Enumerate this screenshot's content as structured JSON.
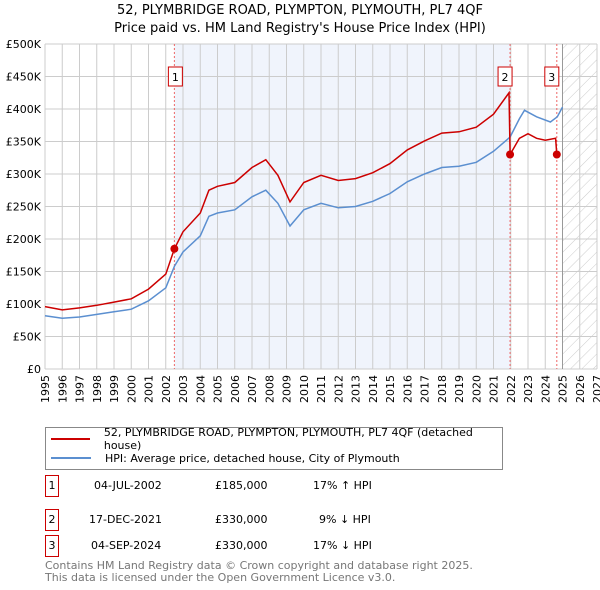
{
  "title": "52, PLYMBRIDGE ROAD, PLYMPTON, PLYMOUTH, PL7 4QF",
  "subtitle": "Price paid vs. HM Land Registry's House Price Index (HPI)",
  "chart_data": {
    "type": "line",
    "xlim": [
      1995,
      2027
    ],
    "ylim": [
      0,
      500000
    ],
    "x_ticks": [
      "1995",
      "1996",
      "1997",
      "1998",
      "1999",
      "2000",
      "2001",
      "2002",
      "2003",
      "2004",
      "2005",
      "2006",
      "2007",
      "2008",
      "2009",
      "2010",
      "2011",
      "2012",
      "2013",
      "2014",
      "2015",
      "2016",
      "2017",
      "2018",
      "2019",
      "2020",
      "2021",
      "2022",
      "2023",
      "2024",
      "2025",
      "2026",
      "2027"
    ],
    "y_ticks": [
      "£0",
      "£50K",
      "£100K",
      "£150K",
      "£200K",
      "£250K",
      "£300K",
      "£350K",
      "£400K",
      "£450K",
      "£500K"
    ],
    "grid": true,
    "shaded_period": [
      2002.5,
      2021.96
    ],
    "forecast_hatch_from": 2025,
    "series": [
      {
        "name": "52, PLYMBRIDGE ROAD, PLYMPTON, PLYMOUTH, PL7 4QF (detached house)",
        "color": "#cc0000",
        "x": [
          1995,
          1996,
          1997,
          1998,
          1999,
          2000,
          2001,
          2002,
          2002.5,
          2003,
          2004,
          2004.5,
          2005,
          2006,
          2007,
          2007.8,
          2008.5,
          2009.2,
          2010,
          2011,
          2012,
          2013,
          2014,
          2015,
          2016,
          2017,
          2018,
          2019,
          2020,
          2021,
          2021.9,
          2021.96,
          2022.5,
          2023,
          2023.5,
          2024,
          2024.6,
          2024.67
        ],
        "y": [
          96,
          91,
          94,
          98,
          103,
          108,
          123,
          146,
          185,
          211,
          240,
          275,
          281,
          287,
          310,
          322,
          298,
          257,
          287,
          298,
          290,
          293,
          302,
          316,
          337,
          351,
          363,
          365,
          372,
          392,
          425,
          330,
          355,
          362,
          355,
          352,
          355,
          330
        ]
      },
      {
        "name": "HPI: Average price, detached house, City of Plymouth",
        "color": "#5b8fd0",
        "x": [
          1995,
          1996,
          1997,
          1998,
          1999,
          2000,
          2001,
          2002,
          2002.5,
          2003,
          2004,
          2004.5,
          2005,
          2006,
          2007,
          2007.8,
          2008.5,
          2009.2,
          2010,
          2011,
          2012,
          2013,
          2014,
          2015,
          2016,
          2017,
          2018,
          2019,
          2020,
          2021,
          2021.96,
          2022.5,
          2022.8,
          2023.5,
          2024.3,
          2024.7,
          2025
        ],
        "y": [
          82,
          78,
          80,
          84,
          88,
          92,
          105,
          125,
          158,
          180,
          205,
          235,
          240,
          245,
          265,
          275,
          255,
          220,
          245,
          255,
          248,
          250,
          258,
          270,
          288,
          300,
          310,
          312,
          318,
          335,
          357,
          385,
          398,
          388,
          380,
          388,
          403
        ]
      }
    ],
    "y_unit": "£K",
    "sales": [
      {
        "label": "1",
        "x": 2002.5,
        "y": 185
      },
      {
        "label": "2",
        "x": 2021.96,
        "y": 330
      },
      {
        "label": "3",
        "x": 2024.67,
        "y": 330
      }
    ]
  },
  "legend": [
    "52, PLYMBRIDGE ROAD, PLYMPTON, PLYMOUTH, PL7 4QF (detached house)",
    "HPI: Average price, detached house, City of Plymouth"
  ],
  "transactions": [
    {
      "num": "1",
      "date": "04-JUL-2002",
      "price": "£185,000",
      "hpi": "17% ↑ HPI"
    },
    {
      "num": "2",
      "date": "17-DEC-2021",
      "price": "£330,000",
      "hpi": "9% ↓ HPI"
    },
    {
      "num": "3",
      "date": "04-SEP-2024",
      "price": "£330,000",
      "hpi": "17% ↓ HPI"
    }
  ],
  "footer": [
    "Contains HM Land Registry data © Crown copyright and database right 2025.",
    "This data is licensed under the Open Government Licence v3.0."
  ]
}
